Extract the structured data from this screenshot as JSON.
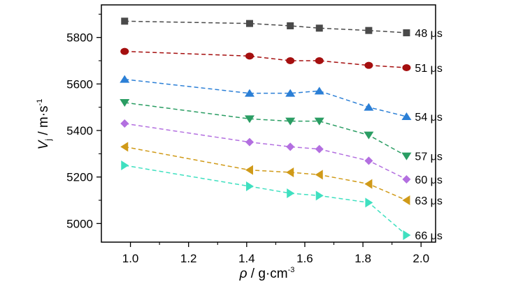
{
  "chart_data": {
    "type": "line",
    "xlabel": {
      "symbol": "ρ",
      "rest": " / g·cm",
      "sup": "-3"
    },
    "ylabel": {
      "symbol": "V",
      "sub": "j",
      "rest": " / m·s",
      "sup": "-1"
    },
    "xlim": [
      0.9,
      2.05
    ],
    "ylim": [
      4920,
      5940
    ],
    "x_ticks": [
      "1.0",
      "1.2",
      "1.4",
      "1.6",
      "1.8",
      "2.0"
    ],
    "y_ticks": [
      "5000",
      "5200",
      "5400",
      "5600",
      "5800"
    ],
    "x_tick_values": [
      1.0,
      1.2,
      1.4,
      1.6,
      1.8,
      2.0
    ],
    "y_tick_values": [
      5000,
      5200,
      5400,
      5600,
      5800
    ],
    "grid": false,
    "x": [
      0.98,
      1.41,
      1.55,
      1.65,
      1.82,
      1.95
    ],
    "series": [
      {
        "name": "48 μs",
        "marker": "square",
        "color": "#4a4a4a",
        "values": [
          5870,
          5860,
          5850,
          5840,
          5830,
          5820
        ]
      },
      {
        "name": "51 μs",
        "marker": "circle",
        "color": "#a50f0f",
        "values": [
          5740,
          5720,
          5700,
          5700,
          5680,
          5670
        ]
      },
      {
        "name": "54 μs",
        "marker": "triangle-up",
        "color": "#2b7fd6",
        "values": [
          5620,
          5560,
          5560,
          5570,
          5500,
          5460
        ]
      },
      {
        "name": "57 μs",
        "marker": "triangle-down",
        "color": "#2a9d63",
        "values": [
          5520,
          5450,
          5440,
          5440,
          5380,
          5290
        ]
      },
      {
        "name": "60 μs",
        "marker": "diamond",
        "color": "#b36fe0",
        "values": [
          5430,
          5350,
          5330,
          5320,
          5270,
          5190
        ]
      },
      {
        "name": "63 μs",
        "marker": "triangle-left",
        "color": "#d09a18",
        "values": [
          5330,
          5230,
          5220,
          5210,
          5170,
          5100
        ]
      },
      {
        "name": "66 μs",
        "marker": "triangle-right",
        "color": "#3fe0c0",
        "values": [
          5250,
          5160,
          5130,
          5120,
          5090,
          4950
        ]
      }
    ]
  }
}
